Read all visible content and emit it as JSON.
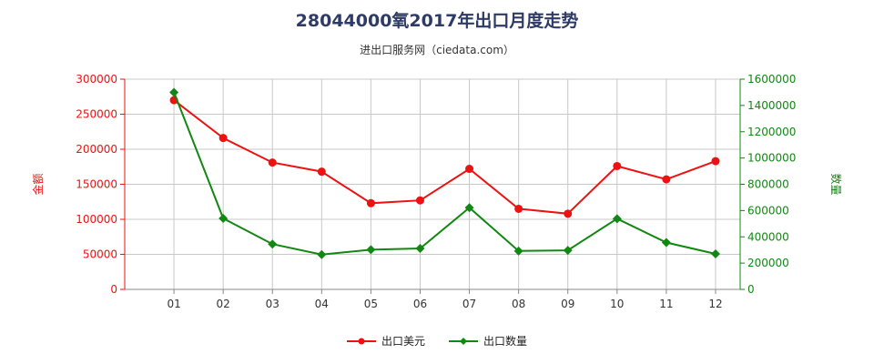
{
  "title": "28044000氧2017年出口月度走势",
  "subtitle": "进出口服务网（ciedata.com）",
  "colors": {
    "amount": "#ee1111",
    "quantity": "#118811",
    "grid": "#c8c8c8",
    "axis": "#888888"
  },
  "chart_data": {
    "type": "line",
    "categories": [
      "01",
      "02",
      "03",
      "04",
      "05",
      "06",
      "07",
      "08",
      "09",
      "10",
      "11",
      "12"
    ],
    "y_left": {
      "label": "金额",
      "ylim": [
        0,
        300000
      ],
      "ticks": [
        "0",
        "50000",
        "100000",
        "150000",
        "200000",
        "250000",
        "300000"
      ]
    },
    "y_right": {
      "label": "数量",
      "ylim": [
        0,
        1600000
      ],
      "ticks": [
        "0",
        "200000",
        "400000",
        "600000",
        "800000",
        "1000000",
        "1200000",
        "1400000",
        "1600000"
      ]
    },
    "series": [
      {
        "name": "出口美元",
        "axis": "left",
        "marker": "circle",
        "values": [
          270000,
          216000,
          181000,
          168000,
          123000,
          127000,
          172000,
          115000,
          108000,
          176000,
          157000,
          183000
        ]
      },
      {
        "name": "出口数量",
        "axis": "right",
        "marker": "diamond",
        "values": [
          1500000,
          540000,
          345000,
          265000,
          302000,
          312000,
          622000,
          292000,
          297000,
          538000,
          357000,
          270000
        ]
      }
    ],
    "grid": true,
    "legend": "bottom"
  }
}
